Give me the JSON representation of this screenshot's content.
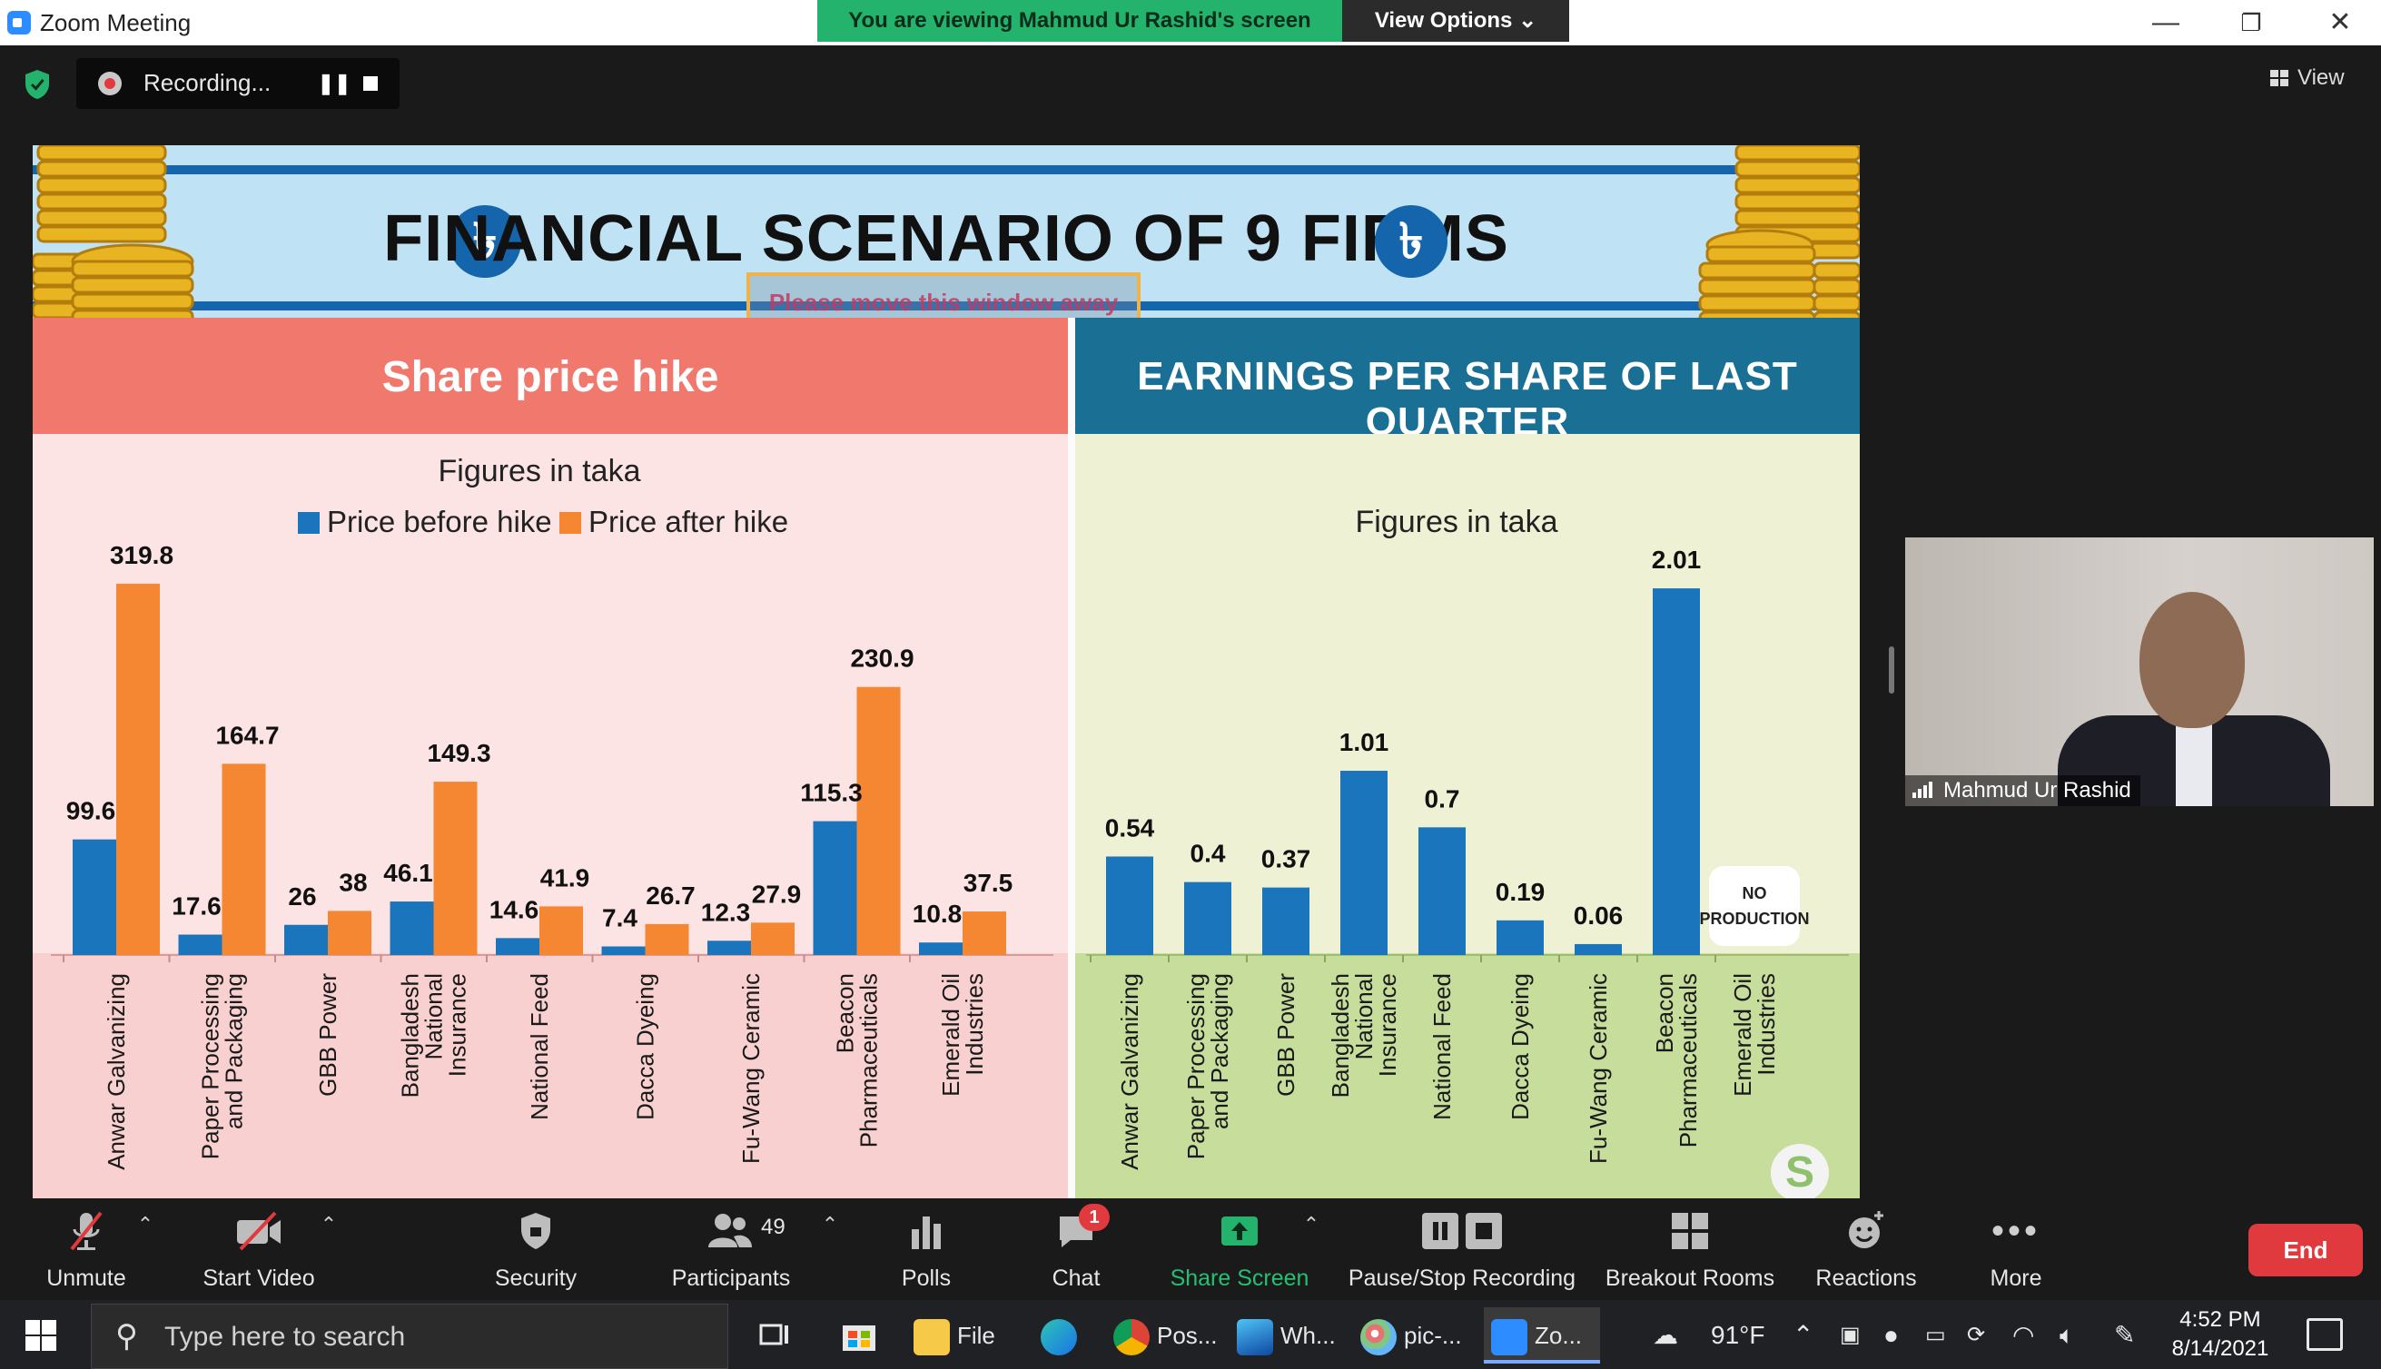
{
  "window": {
    "title": "Zoom Meeting",
    "viewing_banner": "You are viewing Mahmud Ur Rashid's screen",
    "view_options": "View Options ⌄",
    "minimize": "—",
    "restore": "❐",
    "close": "✕"
  },
  "recording": {
    "label": "Recording...",
    "pause": "❚❚"
  },
  "view_button": "View",
  "slide": {
    "title": "FINANCIAL SCENARIO OF 9 FIRMS",
    "currency_symbol": "৳",
    "overlay_warning": "Please move this window away",
    "left_header": "Share price hike",
    "right_header": "EARNINGS PER SHARE OF LAST QUARTER",
    "logo": "S"
  },
  "chart_data": [
    {
      "type": "bar",
      "title": "Share price hike",
      "subtitle": "Figures in taka",
      "legend_position": "top",
      "categories": [
        "Anwar Galvanizing",
        "Paper Processing and Packaging",
        "GBB Power",
        "Bangladesh National Insurance",
        "National Feed",
        "Dacca Dyeing",
        "Fu-Wang Ceramic",
        "Beacon Pharmaceuticals",
        "Emerald Oil Industries"
      ],
      "category_lines": [
        [
          "Anwar Galvanizing"
        ],
        [
          "Paper Processing",
          "and Packaging"
        ],
        [
          "GBB Power"
        ],
        [
          "Bangladesh",
          "National",
          "Insurance"
        ],
        [
          "National Feed"
        ],
        [
          "Dacca Dyeing"
        ],
        [
          "Fu-Wang Ceramic"
        ],
        [
          "Beacon",
          "Pharmaceuticals"
        ],
        [
          "Emerald Oil",
          "Industries"
        ]
      ],
      "series": [
        {
          "name": "Price before hike",
          "color": "#1b75bc",
          "values": [
            99.6,
            17.6,
            26,
            46.1,
            14.6,
            7.4,
            12.3,
            115.3,
            10.8
          ]
        },
        {
          "name": "Price after hike",
          "color": "#f58632",
          "values": [
            319.8,
            164.7,
            38,
            149.3,
            41.9,
            26.7,
            27.9,
            230.9,
            37.5
          ]
        }
      ],
      "data_labels": {
        "before": [
          "99.6",
          "17.6",
          "26",
          "46.1",
          "14.6",
          "7.4",
          "12.3",
          "115.3",
          "10.8"
        ],
        "after": [
          "319.8",
          "164.7",
          "38",
          "149.3",
          "41.9",
          "26.7",
          "27.9",
          "230.9",
          "37.5"
        ]
      },
      "ylim": [
        0,
        330
      ]
    },
    {
      "type": "bar",
      "title": "EARNINGS PER SHARE OF LAST QUARTER",
      "subtitle": "Figures in taka",
      "categories": [
        "Anwar Galvanizing",
        "Paper Processing and Packaging",
        "GBB Power",
        "Bangladesh National Insurance",
        "National Feed",
        "Dacca Dyeing",
        "Fu-Wang Ceramic",
        "Beacon Pharmaceuticals",
        "Emerald Oil Industries"
      ],
      "category_lines": [
        [
          "Anwar Galvanizing"
        ],
        [
          "Paper Processing",
          "and Packaging"
        ],
        [
          "GBB Power"
        ],
        [
          "Bangladesh",
          "National",
          "Insurance"
        ],
        [
          "National Feed"
        ],
        [
          "Dacca Dyeing"
        ],
        [
          "Fu-Wang Ceramic"
        ],
        [
          "Beacon",
          "Pharmaceuticals"
        ],
        [
          "Emerald Oil",
          "Industries"
        ]
      ],
      "color": "#1b75bc",
      "values": [
        0.54,
        0.4,
        0.37,
        1.01,
        0.7,
        0.19,
        0.06,
        2.01,
        null
      ],
      "data_labels": [
        "0.54",
        "0.4",
        "0.37",
        "1.01",
        "0.7",
        "0.19",
        "0.06",
        "2.01",
        null
      ],
      "annotations": [
        {
          "category": "Emerald Oil Industries",
          "text": [
            "NO",
            "PRODUCTION"
          ]
        }
      ],
      "ylim": [
        0,
        2.1
      ]
    }
  ],
  "participant": {
    "name": "Mahmud Ur Rashid"
  },
  "toolbar": {
    "unmute": "Unmute",
    "start_video": "Start Video",
    "security": "Security",
    "participants": "Participants",
    "participants_count": "49",
    "polls": "Polls",
    "chat": "Chat",
    "chat_badge": "1",
    "share_screen": "Share Screen",
    "pause_stop_recording": "Pause/Stop Recording",
    "breakout_rooms": "Breakout Rooms",
    "reactions": "Reactions",
    "more": "More",
    "end": "End",
    "caret": "⌃"
  },
  "taskbar": {
    "search_placeholder": "Type here to search",
    "apps": [
      {
        "label": "File ...",
        "icon": "file-explorer-icon"
      },
      {
        "label": "Pos...",
        "icon": "chrome-icon"
      },
      {
        "label": "Wh...",
        "icon": "photos-icon"
      },
      {
        "label": "pic-...",
        "icon": "paint-icon"
      },
      {
        "label": "Zo...",
        "icon": "zoom-icon"
      }
    ],
    "temperature": "91°F",
    "time": "4:52 PM",
    "date": "8/14/2021"
  },
  "colors": {
    "zoom_blue": "#2d8cff",
    "banner_green": "#23b36d",
    "end_red": "#e0393e",
    "bar_blue": "#1b75bc",
    "bar_orange": "#f58632"
  }
}
